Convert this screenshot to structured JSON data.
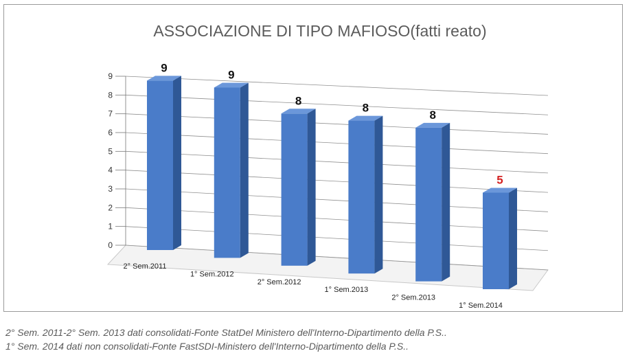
{
  "chart_data": {
    "type": "bar",
    "title": "ASSOCIAZIONE DI TIPO MAFIOSO(fatti reato)",
    "categories": [
      "2° Sem.2011",
      "1° Sem.2012",
      "2° Sem.2012",
      "1° Sem.2013",
      "2° Sem.2013",
      "1° Sem.2014"
    ],
    "values": [
      9,
      9,
      8,
      8,
      8,
      5
    ],
    "ylim": [
      0,
      9
    ],
    "yticks": [
      "0",
      "1",
      "2",
      "3",
      "4",
      "5",
      "6",
      "7",
      "8",
      "9"
    ],
    "grid": true,
    "three_d": true,
    "bar_color": "#4a7cc9",
    "highlight_color": "#d42020",
    "label_color": "#111111"
  },
  "footnotes": [
    "2° Sem. 2011-2° Sem. 2013 dati consolidati-Fonte StatDel Ministero dell'Interno-Dipartimento della P.S..",
    "1° Sem. 2014 dati non consolidati-Fonte FastSDI-Ministero dell'Interno-Dipartimento della P.S.."
  ]
}
